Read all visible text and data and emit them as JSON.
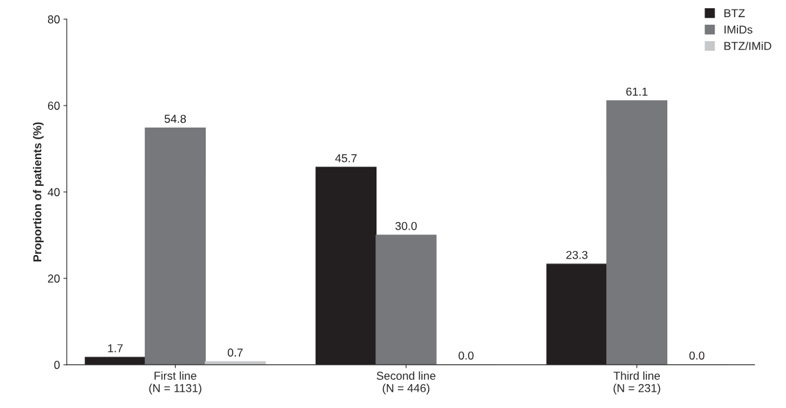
{
  "chart_data": {
    "type": "bar",
    "ylabel": "Proportion of patients (%)",
    "categories": [
      "First line\n(N = 1131)",
      "Second line\n(N = 446)",
      "Third line\n(N = 231)"
    ],
    "series": [
      {
        "name": "BTZ",
        "color": "#231f20",
        "values": [
          1.7,
          45.7,
          23.3
        ],
        "value_labels": [
          "1.7",
          "45.7",
          "23.3"
        ]
      },
      {
        "name": "IMiDs",
        "color": "#77787b",
        "values": [
          54.8,
          30.0,
          61.1
        ],
        "value_labels": [
          "54.8",
          "30.0",
          "61.1"
        ]
      },
      {
        "name": "BTZ/IMiD",
        "color": "#c7c8ca",
        "values": [
          0.7,
          0.0,
          0.0
        ],
        "value_labels": [
          "0.7",
          "0.0",
          "0.0"
        ]
      }
    ],
    "ylim": [
      0,
      80
    ],
    "yticks": [
      0,
      20,
      40,
      60,
      80
    ],
    "grid": false,
    "legend": "top right"
  }
}
